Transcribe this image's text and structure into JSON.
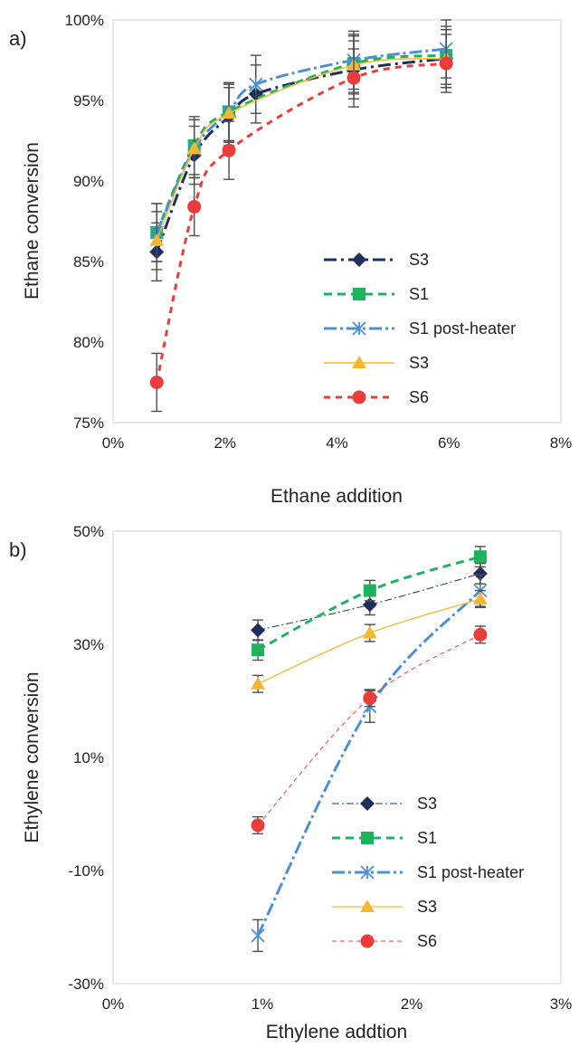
{
  "chart_data": [
    {
      "type": "line",
      "panel_label": "a)",
      "xlabel": "Ethane addition",
      "ylabel": "Ethane conversion",
      "xlim": [
        0,
        8
      ],
      "ylim": [
        75,
        100
      ],
      "x_unit": "%",
      "y_unit": "%",
      "xticks": [
        "0%",
        "2%",
        "4%",
        "6%",
        "8%"
      ],
      "yticks": [
        "75%",
        "80%",
        "85%",
        "90%",
        "95%",
        "100%"
      ],
      "legend_position": "bottom-right",
      "grid": false,
      "series": [
        {
          "name": "S3",
          "marker": "diamond",
          "color": "#1f2f5c",
          "dash": "14,5,3,5",
          "width": 3,
          "x": [
            0.78,
            1.45,
            2.07,
            2.55,
            4.3,
            5.95
          ],
          "y": [
            85.6,
            91.6,
            94.0,
            95.4,
            96.9,
            97.6
          ],
          "err": 1.8
        },
        {
          "name": "S1",
          "marker": "square",
          "color": "#1db35c",
          "dash": "9,6",
          "width": 3,
          "x": [
            0.78,
            1.45,
            2.07,
            4.3,
            5.95
          ],
          "y": [
            86.8,
            92.2,
            94.3,
            97.3,
            97.8
          ],
          "err": 1.8
        },
        {
          "name": "S1 post-heater",
          "marker": "asterisk",
          "color": "#4a90d6",
          "dash": "14,4,3,4",
          "width": 3,
          "x": [
            0.78,
            1.45,
            2.07,
            2.55,
            4.3,
            5.95
          ],
          "y": [
            86.8,
            92.0,
            94.3,
            96.0,
            97.5,
            98.2
          ],
          "err": 1.8
        },
        {
          "name": "S3",
          "marker": "triangle",
          "color": "#f5b731",
          "dash": "",
          "width": 1.5,
          "x": [
            0.78,
            1.45,
            2.07,
            4.3,
            5.95
          ],
          "y": [
            86.3,
            92.0,
            94.2,
            97.2,
            97.6
          ],
          "err": 1.8
        },
        {
          "name": "S6",
          "marker": "circle",
          "color": "#ec3b3b",
          "dash": "7,6",
          "width": 3,
          "x": [
            0.78,
            1.45,
            2.07,
            4.3,
            5.95
          ],
          "y": [
            77.5,
            88.4,
            91.9,
            96.4,
            97.3
          ],
          "err": 1.8
        }
      ]
    },
    {
      "type": "line",
      "panel_label": "b)",
      "xlabel": "Ethylene addtion",
      "ylabel": "Ethylene  conversion",
      "xlim": [
        0,
        3
      ],
      "ylim": [
        -30,
        50
      ],
      "x_unit": "%",
      "y_unit": "%",
      "xticks": [
        "0%",
        "1%",
        "2%",
        "3%"
      ],
      "yticks": [
        "-30%",
        "-10%",
        "10%",
        "30%",
        "50%"
      ],
      "legend_position": "bottom-center",
      "grid": false,
      "series": [
        {
          "name": "S3",
          "marker": "diamond",
          "color": "#1f2f5c",
          "dash": "8,3,2,3",
          "width": 1,
          "x": [
            0.97,
            1.72,
            2.46
          ],
          "y": [
            32.5,
            37.0,
            42.5
          ],
          "err": 1.8
        },
        {
          "name": "S1",
          "marker": "square",
          "color": "#1db35c",
          "dash": "9,6",
          "width": 3,
          "x": [
            0.97,
            1.72,
            2.46
          ],
          "y": [
            29.0,
            39.5,
            45.5
          ],
          "err": 1.8
        },
        {
          "name": "S1 post-heater",
          "marker": "asterisk",
          "color": "#4a90d6",
          "dash": "14,4,3,4",
          "width": 3,
          "x": [
            0.97,
            1.72,
            2.46
          ],
          "y": [
            -21.5,
            19.0,
            39.5
          ],
          "err": 2.8
        },
        {
          "name": "S3",
          "marker": "triangle",
          "color": "#f5b731",
          "dash": "",
          "width": 1.3,
          "x": [
            0.97,
            1.72,
            2.46
          ],
          "y": [
            23.0,
            32.0,
            38.0
          ],
          "err": 1.5
        },
        {
          "name": "S6",
          "marker": "circle",
          "color": "#ec3b3b",
          "dash": "5,4",
          "width": 1,
          "x": [
            0.97,
            1.72,
            2.46
          ],
          "y": [
            -2.0,
            20.5,
            31.7
          ],
          "err": 1.5
        }
      ]
    }
  ]
}
